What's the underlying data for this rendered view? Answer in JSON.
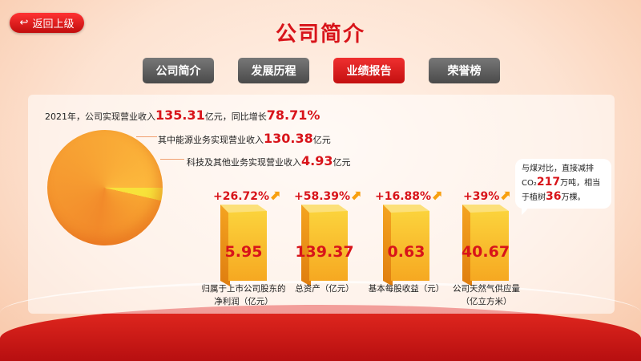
{
  "header": {
    "back_label": "返回上级",
    "title": "公司简介"
  },
  "tabs": [
    {
      "label": "公司简介",
      "active": false
    },
    {
      "label": "发展历程",
      "active": false
    },
    {
      "label": "业绩报告",
      "active": true
    },
    {
      "label": "荣誉榜",
      "active": false
    }
  ],
  "summary": {
    "prefix": "2021年，公司实现营业收入",
    "revenue": "135.31",
    "mid": "亿元，同比增长",
    "growth": "78.71%"
  },
  "pie": {
    "energy": {
      "label": "其中能源业务实现营业收入",
      "value": "130.38",
      "unit": "亿元"
    },
    "tech": {
      "label": "科技及其他业务实现营业收入",
      "value": "4.93",
      "unit": "亿元"
    }
  },
  "metrics": [
    {
      "change": "+26.72%",
      "value": "5.95",
      "label1": "归属于上市公司股东的",
      "label2": "净利润（亿元）"
    },
    {
      "change": "+58.39%",
      "value": "139.37",
      "label1": "总资产（亿元）",
      "label2": ""
    },
    {
      "change": "+16.88%",
      "value": "0.63",
      "label1": "基本每股收益（元）",
      "label2": ""
    },
    {
      "change": "+39%",
      "value": "40.67",
      "label1": "公司天然气供应量",
      "label2": "（亿立方米）"
    }
  ],
  "bubble": {
    "t1": "与煤对比，直接减排",
    "co2": "CO₂",
    "v1": "217",
    "t2": "万吨，相当",
    "t3": "于植树",
    "v2": "36",
    "t4": "万棵。"
  },
  "colors": {
    "accent": "#d8141a",
    "bar": "#fbd33c"
  }
}
